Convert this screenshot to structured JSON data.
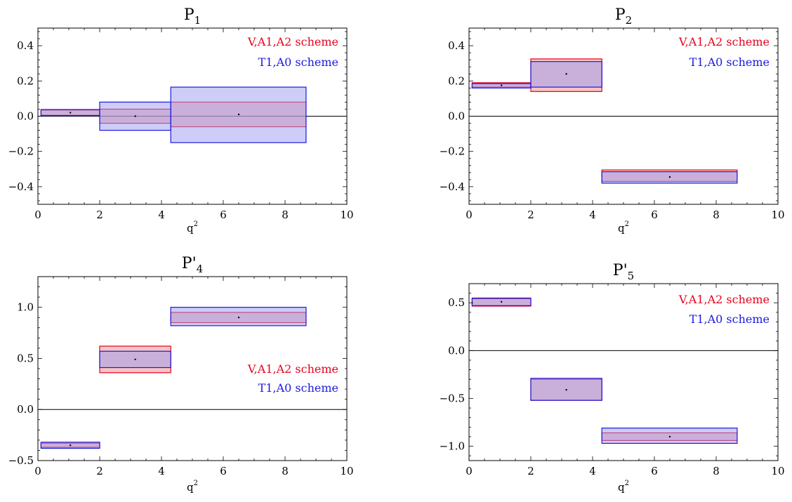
{
  "colors": {
    "red_scheme": "#e8001c",
    "blue_scheme": "#1a1adf",
    "red_fill": "#ee8c8c",
    "blue_fill": "#9b9bf0"
  },
  "chart_data": [
    {
      "type": "bar",
      "title_main": "P",
      "title_prime": "",
      "title_sub": "1",
      "xlabel": "q",
      "xlabel_sup": "2",
      "xlim": [
        0,
        10
      ],
      "ylim": [
        -0.5,
        0.5
      ],
      "xticks": [
        0,
        2,
        4,
        6,
        8,
        10
      ],
      "yticks": [
        -0.4,
        -0.2,
        0.0,
        0.2,
        0.4
      ],
      "tick_decimals": 1,
      "legend": {
        "position": "top-right",
        "red": "V,A1,A2 scheme",
        "blue": "T1,A0 scheme"
      },
      "bins": [
        {
          "x0": 0.1,
          "x1": 2.0,
          "center": 1.05,
          "value": 0.02,
          "red": [
            0.005,
            0.035
          ],
          "blue": [
            0.003,
            0.038
          ]
        },
        {
          "x0": 2.0,
          "x1": 4.3,
          "center": 3.15,
          "value": 0.0,
          "red": [
            -0.04,
            0.04
          ],
          "blue": [
            -0.08,
            0.08
          ]
        },
        {
          "x0": 4.3,
          "x1": 8.68,
          "center": 6.5,
          "value": 0.01,
          "red": [
            -0.06,
            0.08
          ],
          "blue": [
            -0.15,
            0.165
          ]
        }
      ]
    },
    {
      "type": "bar",
      "title_main": "P",
      "title_prime": "",
      "title_sub": "2",
      "xlabel": "q",
      "xlabel_sup": "2",
      "xlim": [
        0,
        10
      ],
      "ylim": [
        -0.5,
        0.5
      ],
      "xticks": [
        0,
        2,
        4,
        6,
        8,
        10
      ],
      "yticks": [
        -0.4,
        -0.2,
        0.0,
        0.2,
        0.4
      ],
      "tick_decimals": 1,
      "legend": {
        "position": "top-right",
        "red": "V,A1,A2 scheme",
        "blue": "T1,A0 scheme"
      },
      "bins": [
        {
          "x0": 0.1,
          "x1": 2.0,
          "center": 1.05,
          "value": 0.175,
          "red": [
            0.165,
            0.19
          ],
          "blue": [
            0.16,
            0.185
          ]
        },
        {
          "x0": 2.0,
          "x1": 4.3,
          "center": 3.15,
          "value": 0.24,
          "red": [
            0.14,
            0.325
          ],
          "blue": [
            0.165,
            0.31
          ]
        },
        {
          "x0": 4.3,
          "x1": 8.68,
          "center": 6.5,
          "value": -0.345,
          "red": [
            -0.37,
            -0.305
          ],
          "blue": [
            -0.38,
            -0.315
          ]
        }
      ]
    },
    {
      "type": "bar",
      "title_main": "P",
      "title_prime": "'",
      "title_sub": "4",
      "xlabel": "q",
      "xlabel_sup": "2",
      "xlim": [
        0,
        10
      ],
      "ylim": [
        -0.5,
        1.3
      ],
      "xticks": [
        0,
        2,
        4,
        6,
        8,
        10
      ],
      "yticks": [
        -0.5,
        0.0,
        0.5,
        1.0
      ],
      "tick_decimals": 1,
      "legend": {
        "position": "center-right",
        "red": "V,A1,A2 scheme",
        "blue": "T1,A0 scheme"
      },
      "bins": [
        {
          "x0": 0.1,
          "x1": 2.0,
          "center": 1.05,
          "value": -0.35,
          "red": [
            -0.37,
            -0.33
          ],
          "blue": [
            -0.38,
            -0.32
          ]
        },
        {
          "x0": 2.0,
          "x1": 4.3,
          "center": 3.15,
          "value": 0.49,
          "red": [
            0.36,
            0.62
          ],
          "blue": [
            0.41,
            0.57
          ]
        },
        {
          "x0": 4.3,
          "x1": 8.68,
          "center": 6.5,
          "value": 0.9,
          "red": [
            0.85,
            0.95
          ],
          "blue": [
            0.82,
            1.0
          ]
        }
      ]
    },
    {
      "type": "bar",
      "title_main": "P",
      "title_prime": "'",
      "title_sub": "5",
      "xlabel": "q",
      "xlabel_sup": "2",
      "xlim": [
        0,
        10
      ],
      "ylim": [
        -1.15,
        0.7
      ],
      "xticks": [
        0,
        2,
        4,
        6,
        8,
        10
      ],
      "yticks": [
        -1.0,
        -0.5,
        0.0,
        0.5
      ],
      "tick_decimals": 1,
      "legend": {
        "position": "top-right",
        "red": "V,A1,A2 scheme",
        "blue": "T1,A0 scheme"
      },
      "bins": [
        {
          "x0": 0.1,
          "x1": 2.0,
          "center": 1.05,
          "value": 0.51,
          "red": [
            0.465,
            0.55
          ],
          "blue": [
            0.47,
            0.545
          ]
        },
        {
          "x0": 2.0,
          "x1": 4.3,
          "center": 3.15,
          "value": -0.41,
          "red": [
            -0.52,
            -0.3
          ],
          "blue": [
            -0.52,
            -0.29
          ]
        },
        {
          "x0": 4.3,
          "x1": 8.68,
          "center": 6.5,
          "value": -0.9,
          "red": [
            -0.94,
            -0.86
          ],
          "blue": [
            -0.97,
            -0.81
          ]
        }
      ]
    }
  ]
}
